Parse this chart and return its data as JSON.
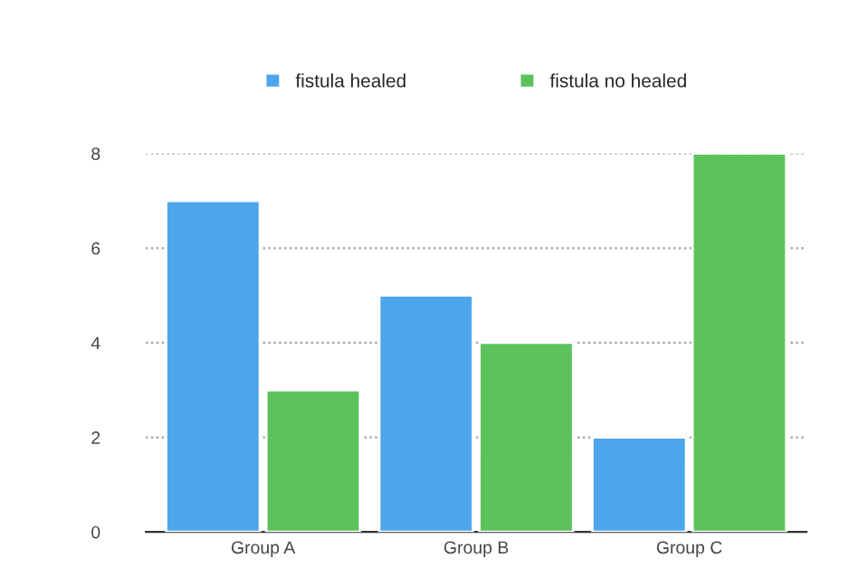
{
  "chart_data": {
    "type": "bar",
    "categories": [
      "Group A",
      "Group B",
      "Group C"
    ],
    "series": [
      {
        "name": "fistula healed",
        "color": "#4da6ec",
        "values": [
          7,
          5,
          2
        ]
      },
      {
        "name": "fistula no healed",
        "color": "#5cc25c",
        "values": [
          3,
          4,
          8
        ]
      }
    ],
    "ylim": [
      0,
      8
    ],
    "yticks": [
      0,
      2,
      4,
      6,
      8
    ],
    "grid": "y",
    "legend": "top"
  }
}
